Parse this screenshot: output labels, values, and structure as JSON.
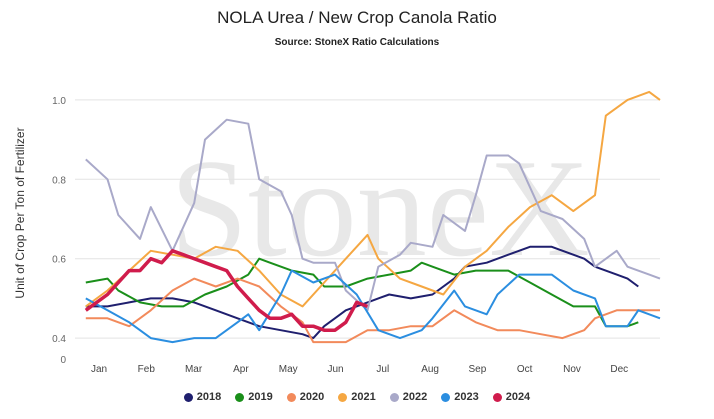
{
  "chart": {
    "title": "NOLA Urea / New Crop Canola Ratio",
    "subtitle": "Source: StoneX Ratio Calculations",
    "watermark": "StoneX",
    "zero_tick": "0"
  },
  "chart_data": {
    "type": "line",
    "title": "NOLA Urea / New Crop Canola Ratio",
    "subtitle": "Source: StoneX Ratio Calculations",
    "ylabel": "Unit of Crop Per Ton of Fertilizer",
    "xlabel": "",
    "x_unit": "week of year",
    "xlim": [
      0,
      52
    ],
    "ylim": [
      0.35,
      1.05
    ],
    "y_ticks": [
      "0.4",
      "0.6",
      "0.8",
      "1.0"
    ],
    "categories": [
      "Jan",
      "Feb",
      "Mar",
      "Apr",
      "May",
      "Jun",
      "Jul",
      "Aug",
      "Sep",
      "Oct",
      "Nov",
      "Dec"
    ],
    "grid": "horizontal",
    "legend": "bottom",
    "series": [
      {
        "name": "2018",
        "color": "#1f1f6e",
        "values": [
          [
            1,
            0.48
          ],
          [
            3,
            0.48
          ],
          [
            5,
            0.49
          ],
          [
            7,
            0.5
          ],
          [
            9,
            0.5
          ],
          [
            11,
            0.49
          ],
          [
            13,
            0.47
          ],
          [
            15,
            0.45
          ],
          [
            17,
            0.43
          ],
          [
            19,
            0.42
          ],
          [
            21,
            0.41
          ],
          [
            22,
            0.4
          ],
          [
            23,
            0.43
          ],
          [
            25,
            0.47
          ],
          [
            27,
            0.49
          ],
          [
            29,
            0.51
          ],
          [
            31,
            0.5
          ],
          [
            33,
            0.51
          ],
          [
            35,
            0.55
          ],
          [
            36,
            0.58
          ],
          [
            38,
            0.59
          ],
          [
            40,
            0.61
          ],
          [
            42,
            0.63
          ],
          [
            44,
            0.63
          ],
          [
            46,
            0.61
          ],
          [
            47,
            0.6
          ],
          [
            48,
            0.58
          ],
          [
            50,
            0.56
          ],
          [
            51,
            0.55
          ],
          [
            52,
            0.53
          ]
        ]
      },
      {
        "name": "2019",
        "color": "#1a8f1a",
        "values": [
          [
            1,
            0.54
          ],
          [
            3,
            0.55
          ],
          [
            4,
            0.52
          ],
          [
            6,
            0.49
          ],
          [
            8,
            0.48
          ],
          [
            10,
            0.48
          ],
          [
            12,
            0.51
          ],
          [
            14,
            0.53
          ],
          [
            16,
            0.56
          ],
          [
            17,
            0.6
          ],
          [
            18,
            0.59
          ],
          [
            20,
            0.57
          ],
          [
            22,
            0.56
          ],
          [
            23,
            0.53
          ],
          [
            25,
            0.53
          ],
          [
            27,
            0.55
          ],
          [
            29,
            0.56
          ],
          [
            31,
            0.57
          ],
          [
            32,
            0.59
          ],
          [
            33,
            0.58
          ],
          [
            35,
            0.56
          ],
          [
            37,
            0.57
          ],
          [
            39,
            0.57
          ],
          [
            40,
            0.57
          ],
          [
            42,
            0.54
          ],
          [
            44,
            0.51
          ],
          [
            46,
            0.48
          ],
          [
            48,
            0.48
          ],
          [
            49,
            0.43
          ],
          [
            51,
            0.43
          ],
          [
            52,
            0.44
          ]
        ]
      },
      {
        "name": "2020",
        "color": "#f28a5b",
        "values": [
          [
            1,
            0.45
          ],
          [
            3,
            0.45
          ],
          [
            5,
            0.43
          ],
          [
            7,
            0.47
          ],
          [
            9,
            0.52
          ],
          [
            11,
            0.55
          ],
          [
            13,
            0.53
          ],
          [
            15,
            0.55
          ],
          [
            17,
            0.53
          ],
          [
            19,
            0.48
          ],
          [
            21,
            0.44
          ],
          [
            22,
            0.39
          ],
          [
            23,
            0.39
          ],
          [
            25,
            0.39
          ],
          [
            27,
            0.42
          ],
          [
            29,
            0.42
          ],
          [
            31,
            0.43
          ],
          [
            33,
            0.43
          ],
          [
            35,
            0.47
          ],
          [
            37,
            0.44
          ],
          [
            39,
            0.42
          ],
          [
            41,
            0.42
          ],
          [
            43,
            0.41
          ],
          [
            45,
            0.4
          ],
          [
            47,
            0.42
          ],
          [
            48,
            0.45
          ],
          [
            50,
            0.47
          ],
          [
            52,
            0.47
          ],
          [
            54,
            0.47
          ]
        ]
      },
      {
        "name": "2021",
        "color": "#f5a742",
        "values": [
          [
            1,
            0.48
          ],
          [
            3,
            0.52
          ],
          [
            5,
            0.57
          ],
          [
            7,
            0.62
          ],
          [
            9,
            0.61
          ],
          [
            11,
            0.6
          ],
          [
            13,
            0.63
          ],
          [
            15,
            0.62
          ],
          [
            17,
            0.57
          ],
          [
            19,
            0.51
          ],
          [
            21,
            0.48
          ],
          [
            23,
            0.54
          ],
          [
            25,
            0.6
          ],
          [
            27,
            0.66
          ],
          [
            28,
            0.6
          ],
          [
            30,
            0.55
          ],
          [
            32,
            0.53
          ],
          [
            34,
            0.51
          ],
          [
            36,
            0.58
          ],
          [
            38,
            0.62
          ],
          [
            40,
            0.68
          ],
          [
            42,
            0.73
          ],
          [
            44,
            0.76
          ],
          [
            46,
            0.72
          ],
          [
            48,
            0.76
          ],
          [
            49,
            0.96
          ],
          [
            51,
            1.0
          ],
          [
            53,
            1.02
          ],
          [
            54,
            1.0
          ]
        ]
      },
      {
        "name": "2022",
        "color": "#a9a9c9",
        "values": [
          [
            1,
            0.85
          ],
          [
            3,
            0.8
          ],
          [
            4,
            0.71
          ],
          [
            6,
            0.65
          ],
          [
            7,
            0.73
          ],
          [
            9,
            0.62
          ],
          [
            11,
            0.74
          ],
          [
            12,
            0.9
          ],
          [
            14,
            0.95
          ],
          [
            16,
            0.94
          ],
          [
            17,
            0.8
          ],
          [
            19,
            0.77
          ],
          [
            20,
            0.71
          ],
          [
            21,
            0.6
          ],
          [
            22,
            0.59
          ],
          [
            24,
            0.59
          ],
          [
            25,
            0.52
          ],
          [
            27,
            0.47
          ],
          [
            28,
            0.58
          ],
          [
            30,
            0.61
          ],
          [
            31,
            0.64
          ],
          [
            33,
            0.63
          ],
          [
            34,
            0.71
          ],
          [
            36,
            0.67
          ],
          [
            37,
            0.76
          ],
          [
            38,
            0.86
          ],
          [
            40,
            0.86
          ],
          [
            41,
            0.84
          ],
          [
            43,
            0.72
          ],
          [
            45,
            0.7
          ],
          [
            47,
            0.65
          ],
          [
            48,
            0.58
          ],
          [
            50,
            0.62
          ],
          [
            51,
            0.58
          ],
          [
            53,
            0.56
          ],
          [
            54,
            0.55
          ]
        ]
      },
      {
        "name": "2023",
        "color": "#2b8ee0",
        "values": [
          [
            1,
            0.5
          ],
          [
            3,
            0.47
          ],
          [
            5,
            0.44
          ],
          [
            7,
            0.4
          ],
          [
            9,
            0.39
          ],
          [
            11,
            0.4
          ],
          [
            13,
            0.4
          ],
          [
            15,
            0.44
          ],
          [
            16,
            0.46
          ],
          [
            17,
            0.42
          ],
          [
            19,
            0.51
          ],
          [
            20,
            0.57
          ],
          [
            22,
            0.54
          ],
          [
            24,
            0.56
          ],
          [
            26,
            0.51
          ],
          [
            28,
            0.42
          ],
          [
            30,
            0.4
          ],
          [
            32,
            0.42
          ],
          [
            33,
            0.45
          ],
          [
            35,
            0.52
          ],
          [
            36,
            0.48
          ],
          [
            38,
            0.46
          ],
          [
            39,
            0.51
          ],
          [
            41,
            0.56
          ],
          [
            43,
            0.56
          ],
          [
            44,
            0.56
          ],
          [
            46,
            0.52
          ],
          [
            48,
            0.5
          ],
          [
            49,
            0.43
          ],
          [
            51,
            0.43
          ],
          [
            52,
            0.47
          ],
          [
            54,
            0.45
          ]
        ]
      },
      {
        "name": "2024",
        "color": "#d01c4c",
        "values": [
          [
            1,
            0.47
          ],
          [
            3,
            0.51
          ],
          [
            5,
            0.57
          ],
          [
            6,
            0.57
          ],
          [
            7,
            0.6
          ],
          [
            8,
            0.59
          ],
          [
            9,
            0.62
          ],
          [
            10,
            0.61
          ],
          [
            11,
            0.6
          ],
          [
            12,
            0.59
          ],
          [
            13,
            0.58
          ],
          [
            14,
            0.57
          ],
          [
            15,
            0.53
          ],
          [
            16,
            0.5
          ],
          [
            17,
            0.47
          ],
          [
            18,
            0.45
          ],
          [
            19,
            0.45
          ],
          [
            20,
            0.46
          ],
          [
            21,
            0.43
          ],
          [
            22,
            0.43
          ],
          [
            23,
            0.42
          ],
          [
            24,
            0.42
          ],
          [
            25,
            0.44
          ],
          [
            26,
            0.49
          ],
          [
            27,
            0.48
          ]
        ]
      }
    ]
  }
}
